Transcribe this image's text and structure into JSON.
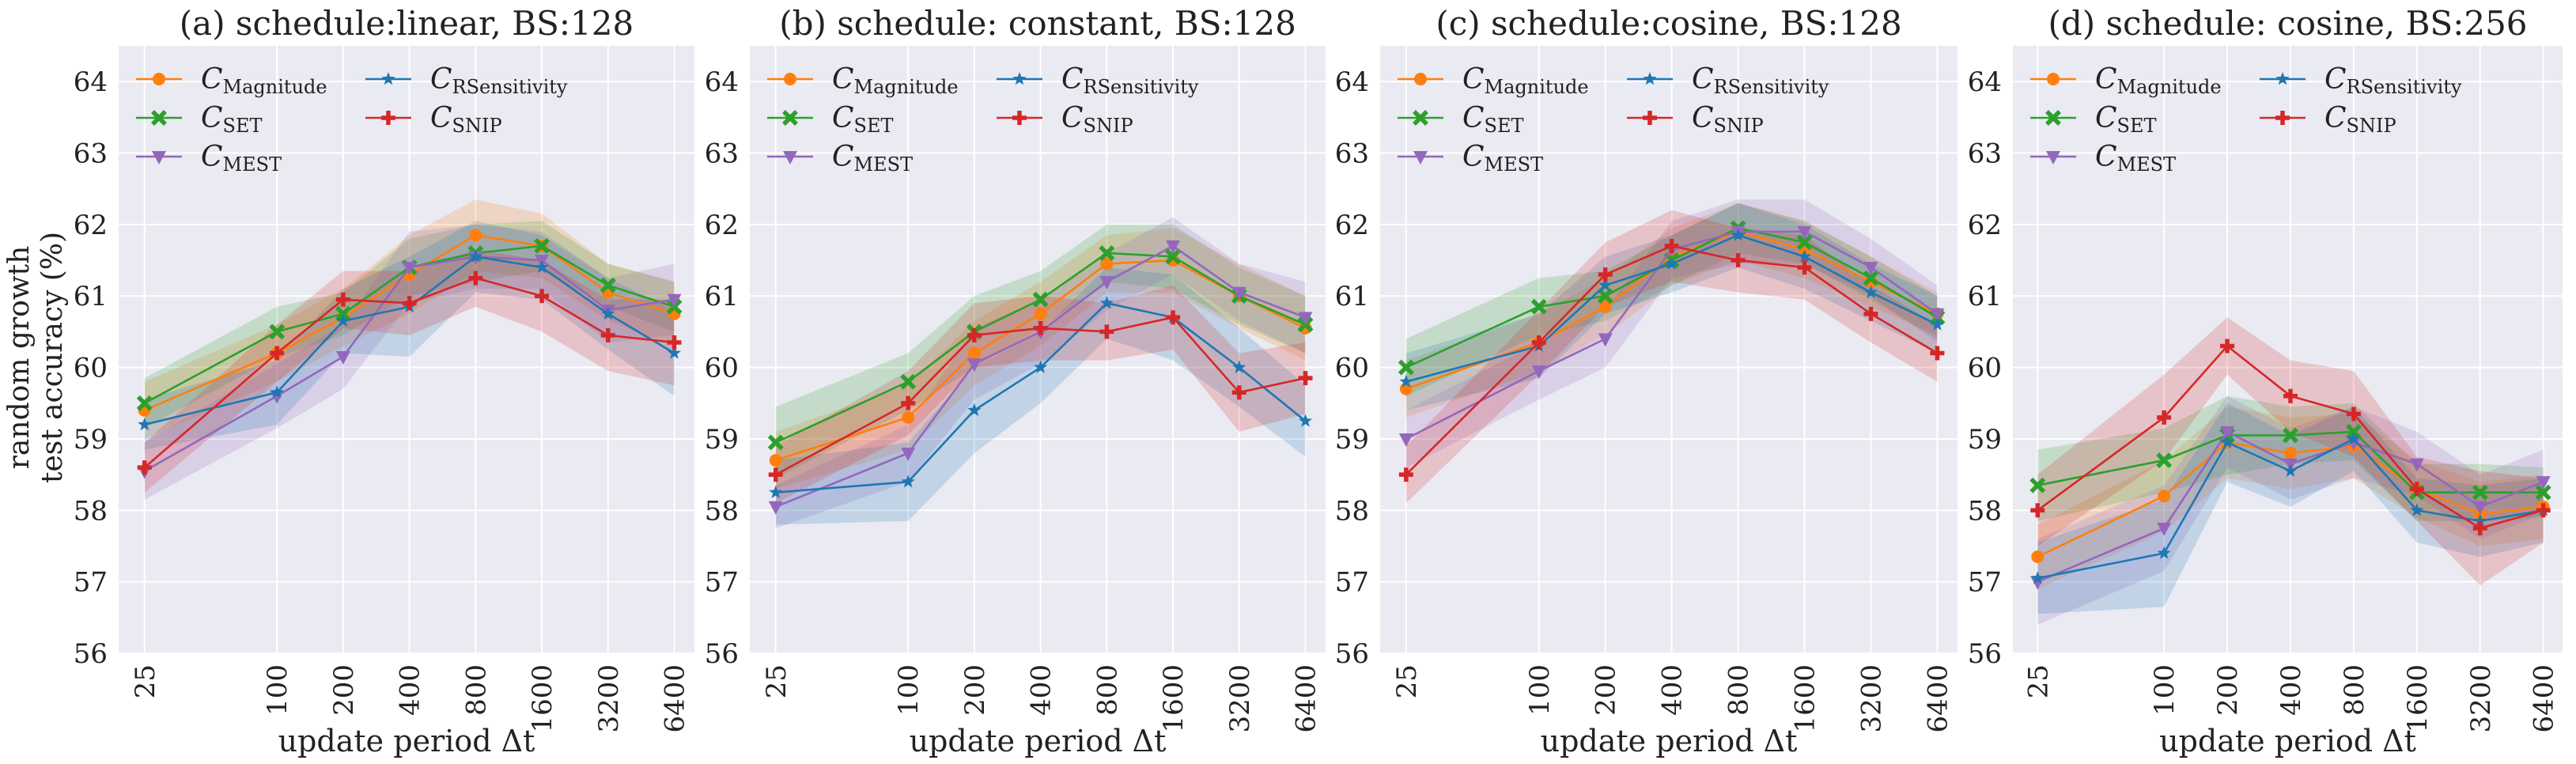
{
  "figure": {
    "ylabel_lines": [
      "random growth",
      "test accuracy (%)"
    ],
    "xlabel": "update period Δt"
  },
  "colors": {
    "Magnitude": "#ff7f0e",
    "SET": "#2ca02c",
    "MEST": "#9467bd",
    "RSensitivity": "#1f77b4",
    "SNIP": "#d62728"
  },
  "chart_data": [
    {
      "type": "line",
      "title": "(a) schedule:linear, BS:128",
      "xlabel": "update period Δt",
      "ylabel": "random growth test accuracy (%)",
      "x": [
        25,
        100,
        200,
        400,
        800,
        1600,
        3200,
        6400
      ],
      "x_tick_labels": [
        "25",
        "100",
        "200",
        "400",
        "800",
        "1600",
        "3200",
        "6400"
      ],
      "ylim": [
        56,
        64.5
      ],
      "y_ticks": [
        "56",
        "57",
        "58",
        "59",
        "60",
        "61",
        "62",
        "63",
        "64"
      ],
      "series": [
        {
          "key": "Magnitude",
          "name": "C",
          "sub": "Magnitude",
          "values": [
            59.4,
            60.2,
            60.7,
            61.3,
            61.85,
            61.7,
            61.05,
            60.75
          ],
          "band": [
            0.4,
            0.4,
            0.4,
            0.55,
            0.5,
            0.45,
            0.4,
            0.45
          ]
        },
        {
          "key": "SET",
          "name": "C",
          "sub": "SET",
          "values": [
            59.5,
            60.5,
            60.75,
            61.4,
            61.6,
            61.7,
            61.15,
            60.85
          ],
          "band": [
            0.35,
            0.35,
            0.3,
            0.4,
            0.4,
            0.35,
            0.3,
            0.35
          ]
        },
        {
          "key": "MEST",
          "name": "C",
          "sub": "MEST",
          "values": [
            58.55,
            59.6,
            60.15,
            61.4,
            61.55,
            61.5,
            60.8,
            60.95
          ],
          "band": [
            0.4,
            0.45,
            0.45,
            0.5,
            0.45,
            0.4,
            0.45,
            0.5
          ]
        },
        {
          "key": "RSensitivity",
          "name": "C",
          "sub": "RSensitivity",
          "values": [
            59.2,
            59.65,
            60.65,
            60.85,
            61.55,
            61.4,
            60.75,
            60.2
          ],
          "band": [
            0.35,
            0.45,
            0.45,
            0.7,
            0.5,
            0.45,
            0.5,
            0.6
          ]
        },
        {
          "key": "SNIP",
          "name": "C",
          "sub": "SNIP",
          "values": [
            58.6,
            60.2,
            60.95,
            60.9,
            61.25,
            61.0,
            60.45,
            60.35
          ],
          "band": [
            0.35,
            0.4,
            0.4,
            0.45,
            0.4,
            0.5,
            0.5,
            0.6
          ]
        }
      ]
    },
    {
      "type": "line",
      "title": "(b) schedule: constant, BS:128",
      "xlabel": "update period Δt",
      "x": [
        25,
        100,
        200,
        400,
        800,
        1600,
        3200,
        6400
      ],
      "x_tick_labels": [
        "25",
        "100",
        "200",
        "400",
        "800",
        "1600",
        "3200",
        "6400"
      ],
      "ylim": [
        56,
        64.5
      ],
      "y_ticks": [
        "56",
        "57",
        "58",
        "59",
        "60",
        "61",
        "62",
        "63",
        "64"
      ],
      "series": [
        {
          "key": "Magnitude",
          "name": "C",
          "sub": "Magnitude",
          "values": [
            58.7,
            59.3,
            60.2,
            60.75,
            61.45,
            61.5,
            61.0,
            60.55
          ],
          "band": [
            0.4,
            0.45,
            0.45,
            0.45,
            0.4,
            0.45,
            0.45,
            0.45
          ]
        },
        {
          "key": "SET",
          "name": "C",
          "sub": "SET",
          "values": [
            58.95,
            59.8,
            60.5,
            60.95,
            61.6,
            61.55,
            61.0,
            60.6
          ],
          "band": [
            0.5,
            0.4,
            0.5,
            0.4,
            0.4,
            0.45,
            0.4,
            0.4
          ]
        },
        {
          "key": "MEST",
          "name": "C",
          "sub": "MEST",
          "values": [
            58.05,
            58.8,
            60.05,
            60.5,
            61.2,
            61.7,
            61.05,
            60.7
          ],
          "band": [
            0.3,
            0.4,
            0.5,
            0.45,
            0.4,
            0.4,
            0.4,
            0.5
          ]
        },
        {
          "key": "RSensitivity",
          "name": "C",
          "sub": "RSensitivity",
          "values": [
            58.25,
            58.4,
            59.4,
            60.0,
            60.9,
            60.7,
            60.0,
            59.25
          ],
          "band": [
            0.45,
            0.55,
            0.6,
            0.5,
            0.5,
            0.6,
            0.55,
            0.5
          ]
        },
        {
          "key": "SNIP",
          "name": "C",
          "sub": "SNIP",
          "values": [
            58.5,
            59.5,
            60.45,
            60.55,
            60.5,
            60.7,
            59.65,
            59.85
          ],
          "band": [
            0.4,
            0.45,
            0.45,
            0.45,
            0.4,
            0.45,
            0.55,
            0.5
          ]
        }
      ]
    },
    {
      "type": "line",
      "title": "(c) schedule:cosine, BS:128",
      "xlabel": "update period Δt",
      "x": [
        25,
        100,
        200,
        400,
        800,
        1600,
        3200,
        6400
      ],
      "x_tick_labels": [
        "25",
        "100",
        "200",
        "400",
        "800",
        "1600",
        "3200",
        "6400"
      ],
      "ylim": [
        56,
        64.5
      ],
      "y_ticks": [
        "56",
        "57",
        "58",
        "59",
        "60",
        "61",
        "62",
        "63",
        "64"
      ],
      "series": [
        {
          "key": "Magnitude",
          "name": "C",
          "sub": "Magnitude",
          "values": [
            59.7,
            60.35,
            60.85,
            61.55,
            61.9,
            61.65,
            61.2,
            60.75
          ],
          "band": [
            0.4,
            0.4,
            0.4,
            0.4,
            0.4,
            0.4,
            0.35,
            0.3
          ]
        },
        {
          "key": "SET",
          "name": "C",
          "sub": "SET",
          "values": [
            60.0,
            60.85,
            61.0,
            61.5,
            61.95,
            61.75,
            61.25,
            60.7
          ],
          "band": [
            0.4,
            0.4,
            0.35,
            0.35,
            0.35,
            0.3,
            0.3,
            0.3
          ]
        },
        {
          "key": "MEST",
          "name": "C",
          "sub": "MEST",
          "values": [
            59.0,
            59.95,
            60.4,
            61.65,
            61.9,
            61.9,
            61.4,
            60.75
          ],
          "band": [
            0.4,
            0.4,
            0.4,
            0.4,
            0.45,
            0.45,
            0.4,
            0.4
          ]
        },
        {
          "key": "RSensitivity",
          "name": "C",
          "sub": "RSensitivity",
          "values": [
            59.8,
            60.3,
            61.15,
            61.45,
            61.85,
            61.55,
            61.05,
            60.6
          ],
          "band": [
            0.4,
            0.45,
            0.4,
            0.4,
            0.45,
            0.45,
            0.4,
            0.4
          ]
        },
        {
          "key": "SNIP",
          "name": "C",
          "sub": "SNIP",
          "values": [
            58.5,
            60.35,
            61.3,
            61.7,
            61.5,
            61.4,
            60.75,
            60.2
          ],
          "band": [
            0.4,
            0.45,
            0.45,
            0.5,
            0.45,
            0.45,
            0.4,
            0.4
          ]
        }
      ]
    },
    {
      "type": "line",
      "title": "(d) schedule: cosine, BS:256",
      "xlabel": "update period Δt",
      "x": [
        25,
        100,
        200,
        400,
        800,
        1600,
        3200,
        6400
      ],
      "x_tick_labels": [
        "25",
        "100",
        "200",
        "400",
        "800",
        "1600",
        "3200",
        "6400"
      ],
      "ylim": [
        56,
        64.5
      ],
      "y_ticks": [
        "56",
        "57",
        "58",
        "59",
        "60",
        "61",
        "62",
        "63",
        "64"
      ],
      "series": [
        {
          "key": "Magnitude",
          "name": "C",
          "sub": "Magnitude",
          "values": [
            57.35,
            58.2,
            58.95,
            58.8,
            58.9,
            58.3,
            57.95,
            58.05
          ],
          "band": [
            0.45,
            0.5,
            0.5,
            0.5,
            0.45,
            0.4,
            0.45,
            0.45
          ]
        },
        {
          "key": "SET",
          "name": "C",
          "sub": "SET",
          "values": [
            58.35,
            58.7,
            59.05,
            59.05,
            59.1,
            58.25,
            58.25,
            58.25
          ],
          "band": [
            0.5,
            0.45,
            0.55,
            0.4,
            0.4,
            0.4,
            0.4,
            0.35
          ]
        },
        {
          "key": "MEST",
          "name": "C",
          "sub": "MEST",
          "values": [
            57.0,
            57.75,
            59.1,
            58.65,
            58.95,
            58.65,
            58.05,
            58.4
          ],
          "band": [
            0.6,
            0.6,
            0.5,
            0.5,
            0.5,
            0.45,
            0.45,
            0.45
          ]
        },
        {
          "key": "RSensitivity",
          "name": "C",
          "sub": "RSensitivity",
          "values": [
            57.05,
            57.4,
            58.95,
            58.55,
            59.0,
            58.0,
            57.85,
            58.0
          ],
          "band": [
            0.5,
            0.75,
            0.55,
            0.5,
            0.45,
            0.45,
            0.5,
            0.45
          ]
        },
        {
          "key": "SNIP",
          "name": "C",
          "sub": "SNIP",
          "values": [
            58.0,
            59.3,
            60.3,
            59.6,
            59.35,
            58.3,
            57.75,
            58.0
          ],
          "band": [
            0.5,
            0.6,
            0.4,
            0.5,
            0.6,
            0.45,
            0.8,
            0.45
          ]
        }
      ]
    }
  ]
}
